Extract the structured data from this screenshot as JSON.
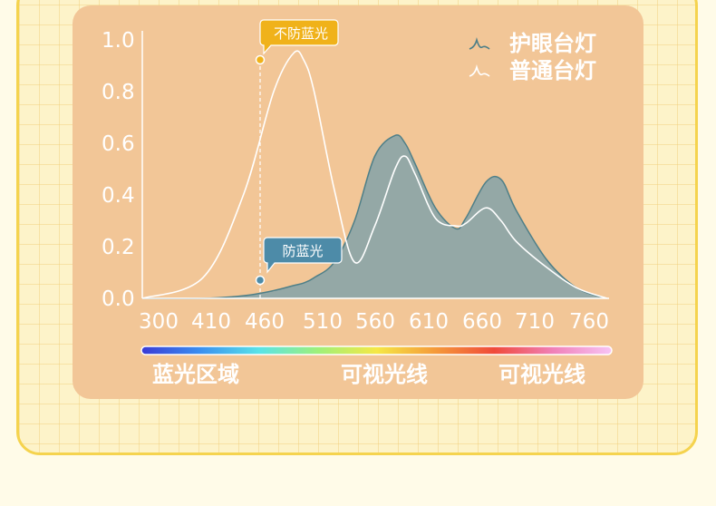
{
  "chart_data": {
    "type": "area",
    "x": [
      300,
      360,
      400,
      430,
      450,
      460,
      470,
      490,
      510,
      530,
      550,
      560,
      570,
      590,
      610,
      620,
      640,
      655,
      670,
      700,
      730,
      760
    ],
    "y_ticks": [
      "0.0",
      "0.2",
      "0.4",
      "0.6",
      "0.8",
      "1.0"
    ],
    "x_ticks": [
      "300",
      "410",
      "460",
      "510",
      "560",
      "610",
      "660",
      "710",
      "760"
    ],
    "ylim": [
      0,
      1.0
    ],
    "xlim": [
      300,
      760
    ],
    "series": [
      {
        "name": "护眼台灯",
        "color": "#8ea7a7",
        "line_color": "#4e7f88",
        "values": [
          0.0,
          0.0,
          0.01,
          0.03,
          0.05,
          0.06,
          0.08,
          0.14,
          0.3,
          0.55,
          0.63,
          0.6,
          0.52,
          0.35,
          0.27,
          0.31,
          0.45,
          0.46,
          0.34,
          0.15,
          0.04,
          0.0
        ]
      },
      {
        "name": "普通台灯",
        "color": "#ffffff",
        "line_color": "#ffffff",
        "values": [
          0.0,
          0.08,
          0.4,
          0.8,
          0.95,
          0.92,
          0.8,
          0.42,
          0.14,
          0.28,
          0.5,
          0.55,
          0.48,
          0.31,
          0.28,
          0.29,
          0.35,
          0.3,
          0.22,
          0.12,
          0.04,
          0.0
        ]
      }
    ],
    "legend_position": "top-right",
    "grid": false,
    "annotations": {
      "no_protection": "不防蓝光",
      "protection": "防蓝光"
    },
    "bands": [
      "蓝光区域",
      "可视光线",
      "可视光线"
    ],
    "spectrum_colors": [
      "#3a3ad6",
      "#3a8ff0",
      "#59e3e8",
      "#9ef07a",
      "#f5e845",
      "#f59a3a",
      "#f04a3a",
      "#f080b8",
      "#f7c4f5"
    ]
  },
  "colors": {
    "callout_yellow": "#f0b21a",
    "callout_teal": "#4d8ba8",
    "axis": "#ffffff"
  }
}
